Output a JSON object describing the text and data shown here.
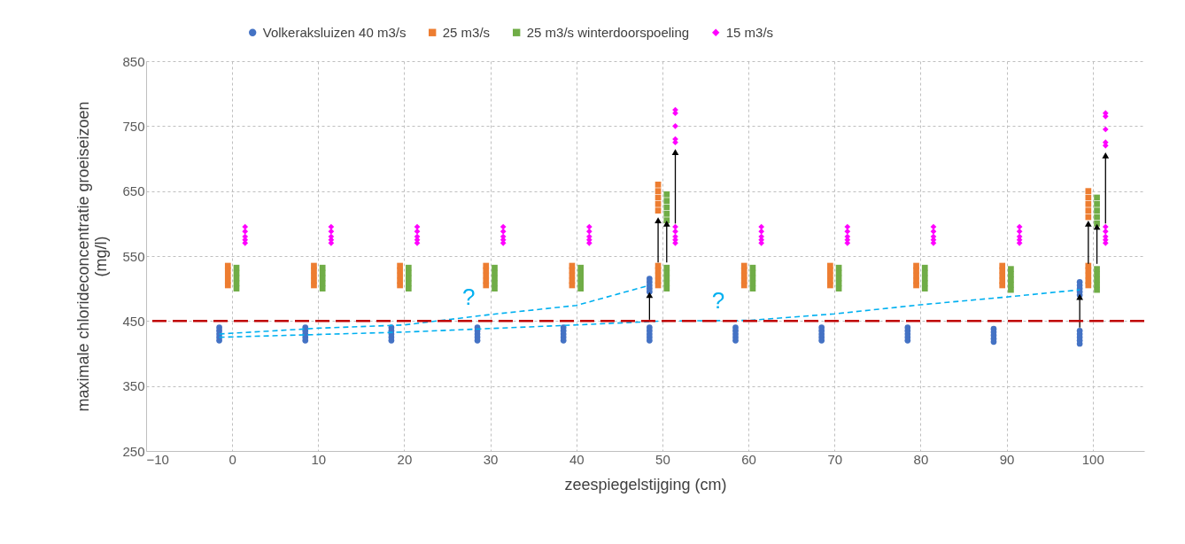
{
  "chart_data": {
    "type": "scatter",
    "xlabel": "zeespiegelstijging (cm)",
    "ylabel": "maximale chlorideconcentratie groeiseizoen (mg/l)",
    "xlim": [
      -10,
      106
    ],
    "xticks": [
      -10,
      0,
      10,
      20,
      30,
      40,
      50,
      60,
      70,
      80,
      90,
      100
    ],
    "ylim": [
      250,
      850
    ],
    "yticks": [
      250,
      350,
      450,
      550,
      650,
      750,
      850
    ],
    "grid": true,
    "legend": "top",
    "ref_lines": [
      {
        "axis": "y",
        "value": 450,
        "color": "#c00000",
        "line_style": "dashed"
      }
    ],
    "annotations": [
      "?",
      "?"
    ],
    "series": [
      {
        "name": "Volkeraksluizen 40 m3/s",
        "marker": "circle",
        "color": "#4472c4",
        "x": [
          -1.5,
          -1.5,
          -1.5,
          -1.5,
          -1.5,
          8.5,
          8.5,
          8.5,
          8.5,
          8.5,
          18.5,
          18.5,
          18.5,
          18.5,
          18.5,
          28.5,
          28.5,
          28.5,
          28.5,
          28.5,
          38.5,
          38.5,
          38.5,
          38.5,
          38.5,
          48.5,
          48.5,
          48.5,
          48.5,
          48.5,
          58.5,
          58.5,
          58.5,
          58.5,
          58.5,
          68.5,
          68.5,
          68.5,
          68.5,
          68.5,
          78.5,
          78.5,
          78.5,
          78.5,
          78.5,
          88.5,
          88.5,
          88.5,
          88.5,
          88.5,
          98.5,
          98.5,
          98.5,
          98.5,
          98.5,
          48.5,
          48.5,
          48.5,
          48.5,
          48.5,
          98.5,
          98.5,
          98.5,
          98.5,
          98.5
        ],
        "values": [
          420,
          425,
          430,
          435,
          440,
          420,
          425,
          430,
          435,
          440,
          420,
          425,
          430,
          435,
          440,
          420,
          425,
          430,
          435,
          440,
          420,
          425,
          430,
          435,
          440,
          420,
          425,
          430,
          435,
          440,
          420,
          425,
          430,
          435,
          440,
          420,
          425,
          430,
          435,
          440,
          420,
          425,
          430,
          435,
          440,
          418,
          423,
          428,
          433,
          438,
          415,
          420,
          425,
          430,
          435,
          495,
          500,
          505,
          510,
          515,
          490,
          495,
          500,
          505,
          510
        ]
      },
      {
        "name": "25 m3/s",
        "marker": "square",
        "color": "#ed7d31",
        "x": [
          -0.5,
          -0.5,
          -0.5,
          -0.5,
          -0.5,
          9.5,
          9.5,
          9.5,
          9.5,
          9.5,
          19.5,
          19.5,
          19.5,
          19.5,
          19.5,
          29.5,
          29.5,
          29.5,
          29.5,
          29.5,
          39.5,
          39.5,
          39.5,
          39.5,
          39.5,
          49.5,
          49.5,
          49.5,
          49.5,
          49.5,
          59.5,
          59.5,
          59.5,
          59.5,
          59.5,
          69.5,
          69.5,
          69.5,
          69.5,
          69.5,
          79.5,
          79.5,
          79.5,
          79.5,
          79.5,
          89.5,
          89.5,
          89.5,
          89.5,
          89.5,
          99.5,
          99.5,
          99.5,
          99.5,
          99.5,
          49.5,
          49.5,
          49.5,
          49.5,
          49.5,
          99.5,
          99.5,
          99.5,
          99.5,
          99.5
        ],
        "values": [
          505,
          512,
          520,
          528,
          535,
          505,
          512,
          520,
          528,
          535,
          505,
          512,
          520,
          528,
          535,
          505,
          512,
          520,
          528,
          535,
          505,
          512,
          520,
          528,
          535,
          505,
          512,
          520,
          528,
          535,
          505,
          512,
          520,
          528,
          535,
          505,
          512,
          520,
          528,
          535,
          505,
          512,
          520,
          528,
          535,
          505,
          512,
          520,
          528,
          535,
          505,
          512,
          520,
          528,
          535,
          620,
          630,
          640,
          650,
          660,
          610,
          620,
          630,
          640,
          650
        ]
      },
      {
        "name": "25 m3/s winterdoorspoeling",
        "marker": "square",
        "color": "#70ad47",
        "x": [
          0.5,
          0.5,
          0.5,
          0.5,
          0.5,
          10.5,
          10.5,
          10.5,
          10.5,
          10.5,
          20.5,
          20.5,
          20.5,
          20.5,
          20.5,
          30.5,
          30.5,
          30.5,
          30.5,
          30.5,
          40.5,
          40.5,
          40.5,
          40.5,
          40.5,
          50.5,
          50.5,
          50.5,
          50.5,
          50.5,
          60.5,
          60.5,
          60.5,
          60.5,
          60.5,
          70.5,
          70.5,
          70.5,
          70.5,
          70.5,
          80.5,
          80.5,
          80.5,
          80.5,
          80.5,
          90.5,
          90.5,
          90.5,
          90.5,
          90.5,
          100.5,
          100.5,
          100.5,
          100.5,
          100.5,
          50.5,
          50.5,
          50.5,
          50.5,
          50.5,
          100.5,
          100.5,
          100.5,
          100.5,
          100.5
        ],
        "values": [
          500,
          508,
          516,
          524,
          532,
          500,
          508,
          516,
          524,
          532,
          500,
          508,
          516,
          524,
          532,
          500,
          508,
          516,
          524,
          532,
          500,
          508,
          516,
          524,
          532,
          500,
          508,
          516,
          524,
          532,
          500,
          508,
          516,
          524,
          532,
          500,
          508,
          516,
          524,
          532,
          500,
          508,
          516,
          524,
          532,
          498,
          506,
          514,
          522,
          530,
          498,
          506,
          514,
          522,
          530,
          605,
          615,
          625,
          635,
          645,
          600,
          610,
          620,
          630,
          640
        ]
      },
      {
        "name": "15 m3/s",
        "marker": "diamond",
        "color": "#ff00ff",
        "x": [
          1.5,
          1.5,
          1.5,
          1.5,
          1.5,
          11.5,
          11.5,
          11.5,
          11.5,
          11.5,
          21.5,
          21.5,
          21.5,
          21.5,
          21.5,
          31.5,
          31.5,
          31.5,
          31.5,
          31.5,
          41.5,
          41.5,
          41.5,
          41.5,
          41.5,
          51.5,
          51.5,
          51.5,
          51.5,
          51.5,
          61.5,
          61.5,
          61.5,
          61.5,
          61.5,
          71.5,
          71.5,
          71.5,
          71.5,
          71.5,
          81.5,
          81.5,
          81.5,
          81.5,
          81.5,
          91.5,
          91.5,
          91.5,
          91.5,
          91.5,
          101.5,
          101.5,
          101.5,
          101.5,
          101.5,
          51.5,
          51.5,
          51.5,
          51.5,
          51.5,
          101.5,
          101.5,
          101.5,
          101.5,
          101.5
        ],
        "values": [
          570,
          575,
          580,
          588,
          595,
          570,
          575,
          580,
          588,
          595,
          570,
          575,
          580,
          588,
          595,
          570,
          575,
          580,
          588,
          595,
          570,
          575,
          580,
          588,
          595,
          570,
          575,
          580,
          588,
          595,
          570,
          575,
          580,
          588,
          595,
          570,
          575,
          580,
          588,
          595,
          570,
          575,
          580,
          588,
          595,
          570,
          575,
          580,
          588,
          595,
          570,
          575,
          580,
          588,
          595,
          725,
          730,
          750,
          770,
          775,
          720,
          725,
          745,
          765,
          770
        ]
      },
      {
        "type": "line",
        "color": "#00b0f0",
        "line_style": "dashed",
        "x": [
          -1.5,
          10,
          20,
          30,
          40,
          48.5
        ],
        "values": [
          430,
          439,
          444,
          460,
          474,
          505
        ]
      },
      {
        "type": "line",
        "color": "#00b0f0",
        "line_style": "dashed",
        "x": [
          -1.5,
          20,
          40,
          50,
          60,
          70,
          80,
          90,
          98.5
        ],
        "values": [
          425,
          433,
          444,
          450,
          451,
          461,
          475,
          487,
          498
        ]
      },
      {
        "type": "line",
        "color": "#000000",
        "marker": "triangle",
        "x": [
          48.5,
          48.5
        ],
        "values": [
          452,
          490
        ]
      },
      {
        "type": "line",
        "color": "#000000",
        "marker": "triangle",
        "x": [
          49.5,
          49.5
        ],
        "values": [
          540,
          605
        ]
      },
      {
        "type": "line",
        "color": "#000000",
        "marker": "triangle",
        "x": [
          50.5,
          50.5
        ],
        "values": [
          540,
          600
        ]
      },
      {
        "type": "line",
        "color": "#000000",
        "marker": "triangle",
        "x": [
          51.5,
          51.5
        ],
        "values": [
          600,
          710
        ]
      },
      {
        "type": "line",
        "color": "#000000",
        "marker": "triangle",
        "x": [
          98.5,
          98.5
        ],
        "values": [
          440,
          487
        ]
      },
      {
        "type": "line",
        "color": "#000000",
        "marker": "triangle",
        "x": [
          99.5,
          99.5
        ],
        "values": [
          538,
          600
        ]
      },
      {
        "type": "line",
        "color": "#000000",
        "marker": "triangle",
        "x": [
          100.5,
          100.5
        ],
        "values": [
          538,
          595
        ]
      },
      {
        "type": "line",
        "color": "#000000",
        "marker": "triangle",
        "x": [
          101.5,
          101.5
        ],
        "values": [
          600,
          705
        ]
      }
    ]
  }
}
